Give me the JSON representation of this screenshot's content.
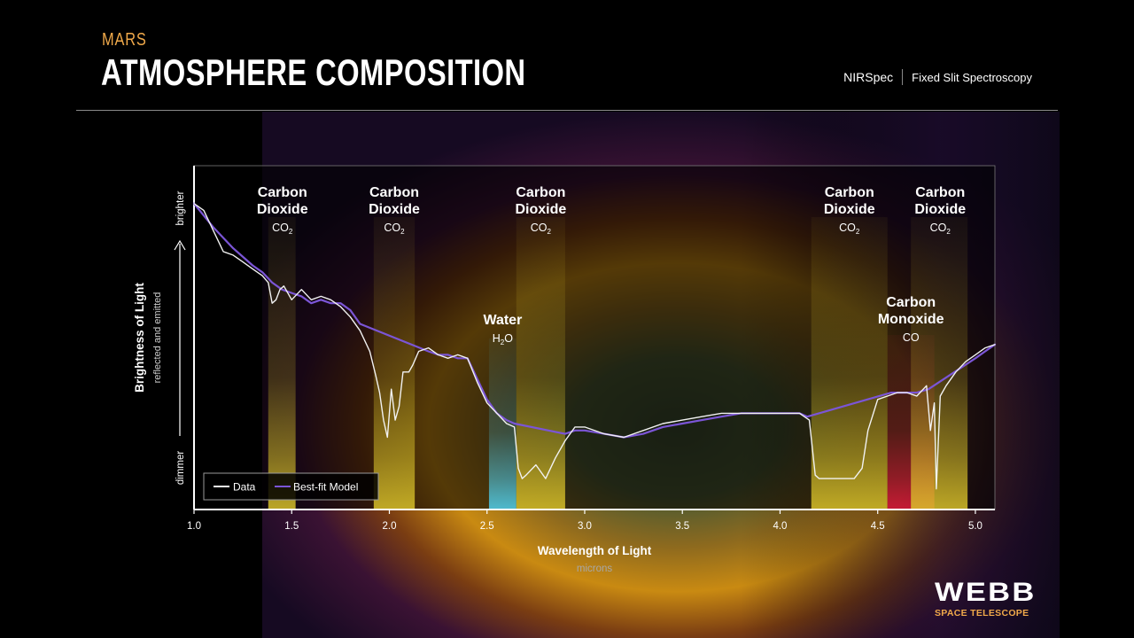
{
  "header": {
    "kicker": "MARS",
    "title": "ATMOSPHERE COMPOSITION",
    "instrument": "NIRSpec",
    "mode": "Fixed Slit Spectroscopy"
  },
  "logo": {
    "name": "WEBB",
    "subtitle": "SPACE TELESCOPE"
  },
  "colors": {
    "accent_orange": "#f0a94a",
    "co2_band": "#d9c22a",
    "water_band": "#4fd2f2",
    "co_band": "#e01a3c",
    "data_line": "#f2f2f2",
    "model_line": "#7b55d6"
  },
  "chart_data": {
    "type": "line",
    "title": "",
    "xlabel": "Wavelength of Light",
    "xunit": "microns",
    "ylabel": "Brightness of Light",
    "ysublabel": "reflected and emitted",
    "ytop_label": "brighter",
    "ybottom_label": "dimmer",
    "xlim": [
      1.0,
      5.1
    ],
    "ylim": [
      0,
      1
    ],
    "xticks": [
      "1.0",
      "1.5",
      "2.0",
      "2.5",
      "3.0",
      "3.5",
      "4.0",
      "4.5",
      "5.0"
    ],
    "legend": {
      "placement": "bottom-left",
      "items": [
        "Data",
        "Best-fit Model"
      ]
    },
    "bands": [
      {
        "molecule": "Carbon Dioxide",
        "formula": "CO",
        "sub": "2",
        "range": [
          1.38,
          1.52
        ],
        "kind": "co2"
      },
      {
        "molecule": "Carbon Dioxide",
        "formula": "CO",
        "sub": "2",
        "range": [
          1.92,
          2.13
        ],
        "kind": "co2"
      },
      {
        "molecule": "Water",
        "formula": "H",
        "sub": "2",
        "formula_tail": "O",
        "range": [
          2.51,
          2.65
        ],
        "kind": "water"
      },
      {
        "molecule": "Carbon Dioxide",
        "formula": "CO",
        "sub": "2",
        "range": [
          2.65,
          2.9
        ],
        "kind": "co2"
      },
      {
        "molecule": "Carbon Dioxide",
        "formula": "CO",
        "sub": "2",
        "range": [
          4.16,
          4.55
        ],
        "kind": "co2"
      },
      {
        "molecule": "Carbon Monoxide",
        "formula": "CO",
        "sub": "",
        "range": [
          4.55,
          4.79
        ],
        "kind": "co"
      },
      {
        "molecule": "Carbon Dioxide",
        "formula": "CO",
        "sub": "2",
        "range": [
          4.67,
          4.96
        ],
        "kind": "co2"
      }
    ],
    "series": [
      {
        "name": "Data",
        "x": [
          1.0,
          1.05,
          1.1,
          1.15,
          1.2,
          1.25,
          1.3,
          1.35,
          1.38,
          1.4,
          1.42,
          1.44,
          1.46,
          1.5,
          1.55,
          1.6,
          1.65,
          1.7,
          1.75,
          1.8,
          1.85,
          1.9,
          1.93,
          1.95,
          1.97,
          1.99,
          2.01,
          2.03,
          2.05,
          2.07,
          2.1,
          2.12,
          2.15,
          2.2,
          2.25,
          2.3,
          2.35,
          2.4,
          2.45,
          2.5,
          2.55,
          2.6,
          2.64,
          2.66,
          2.68,
          2.7,
          2.75,
          2.8,
          2.85,
          2.9,
          2.95,
          3.0,
          3.1,
          3.2,
          3.3,
          3.4,
          3.5,
          3.6,
          3.7,
          3.8,
          3.9,
          4.0,
          4.1,
          4.15,
          4.18,
          4.2,
          4.3,
          4.38,
          4.42,
          4.45,
          4.5,
          4.55,
          4.6,
          4.65,
          4.7,
          4.75,
          4.77,
          4.79,
          4.8,
          4.82,
          4.85,
          4.9,
          4.95,
          5.0,
          5.05,
          5.1
        ],
        "y": [
          0.89,
          0.87,
          0.81,
          0.75,
          0.74,
          0.72,
          0.7,
          0.68,
          0.66,
          0.6,
          0.61,
          0.64,
          0.65,
          0.61,
          0.64,
          0.61,
          0.62,
          0.61,
          0.59,
          0.56,
          0.52,
          0.46,
          0.39,
          0.34,
          0.26,
          0.21,
          0.35,
          0.26,
          0.3,
          0.4,
          0.4,
          0.42,
          0.46,
          0.47,
          0.45,
          0.44,
          0.45,
          0.44,
          0.37,
          0.31,
          0.28,
          0.25,
          0.24,
          0.12,
          0.09,
          0.1,
          0.13,
          0.09,
          0.15,
          0.2,
          0.24,
          0.24,
          0.22,
          0.21,
          0.23,
          0.25,
          0.26,
          0.27,
          0.28,
          0.28,
          0.28,
          0.28,
          0.28,
          0.26,
          0.1,
          0.09,
          0.09,
          0.09,
          0.12,
          0.23,
          0.32,
          0.33,
          0.34,
          0.34,
          0.33,
          0.36,
          0.23,
          0.31,
          0.06,
          0.33,
          0.36,
          0.4,
          0.43,
          0.45,
          0.47,
          0.48
        ]
      },
      {
        "name": "Best-fit Model",
        "x": [
          1.0,
          1.1,
          1.2,
          1.3,
          1.35,
          1.4,
          1.45,
          1.5,
          1.55,
          1.6,
          1.65,
          1.7,
          1.75,
          1.8,
          1.85,
          2.2,
          2.25,
          2.3,
          2.35,
          2.4,
          2.45,
          2.5,
          2.55,
          2.6,
          2.64,
          2.9,
          2.95,
          3.0,
          3.1,
          3.2,
          3.3,
          3.4,
          3.5,
          3.6,
          3.7,
          3.8,
          3.9,
          4.0,
          4.1,
          4.14,
          4.57,
          4.6,
          4.7,
          4.76,
          5.0,
          5.05,
          5.1
        ],
        "y": [
          0.89,
          0.82,
          0.76,
          0.71,
          0.69,
          0.66,
          0.64,
          0.63,
          0.62,
          0.6,
          0.61,
          0.6,
          0.6,
          0.58,
          0.54,
          0.46,
          0.45,
          0.45,
          0.44,
          0.44,
          0.38,
          0.32,
          0.28,
          0.26,
          0.25,
          0.22,
          0.23,
          0.23,
          0.22,
          0.21,
          0.22,
          0.24,
          0.25,
          0.26,
          0.27,
          0.28,
          0.28,
          0.28,
          0.28,
          0.27,
          0.34,
          0.34,
          0.34,
          0.35,
          0.44,
          0.46,
          0.48
        ]
      }
    ]
  }
}
